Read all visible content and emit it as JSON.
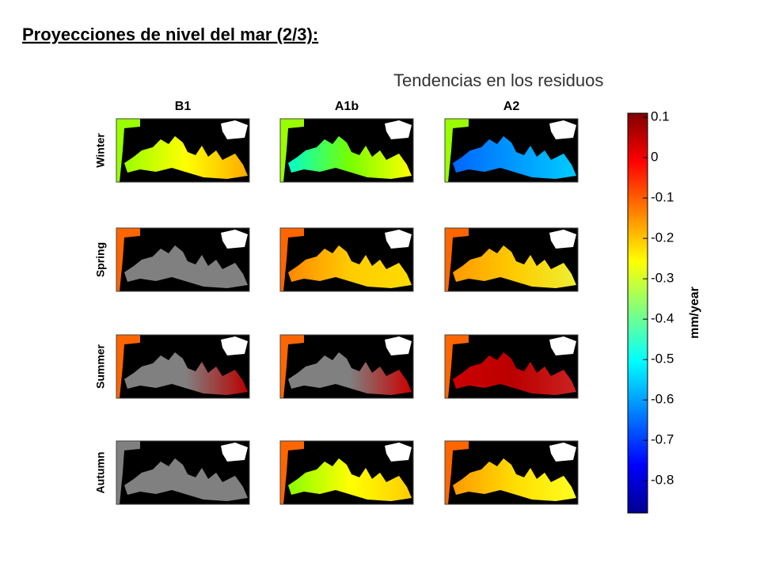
{
  "header": {
    "title": "Proyecciones de nivel del mar (2/3):",
    "subtitle": "Tendencias en los residuos"
  },
  "figure": {
    "columns": [
      "B1",
      "A1b",
      "A2"
    ],
    "rows": [
      "Winter",
      "Spring",
      "Summer",
      "Autumn"
    ],
    "colorbar": {
      "label": "mm/year",
      "lim": [
        -0.88,
        0.11
      ],
      "ticks": [
        0.1,
        0,
        -0.1,
        -0.2,
        -0.3,
        -0.4,
        -0.5,
        -0.6,
        -0.7,
        -0.8
      ],
      "colormap": "jet"
    }
  }
}
